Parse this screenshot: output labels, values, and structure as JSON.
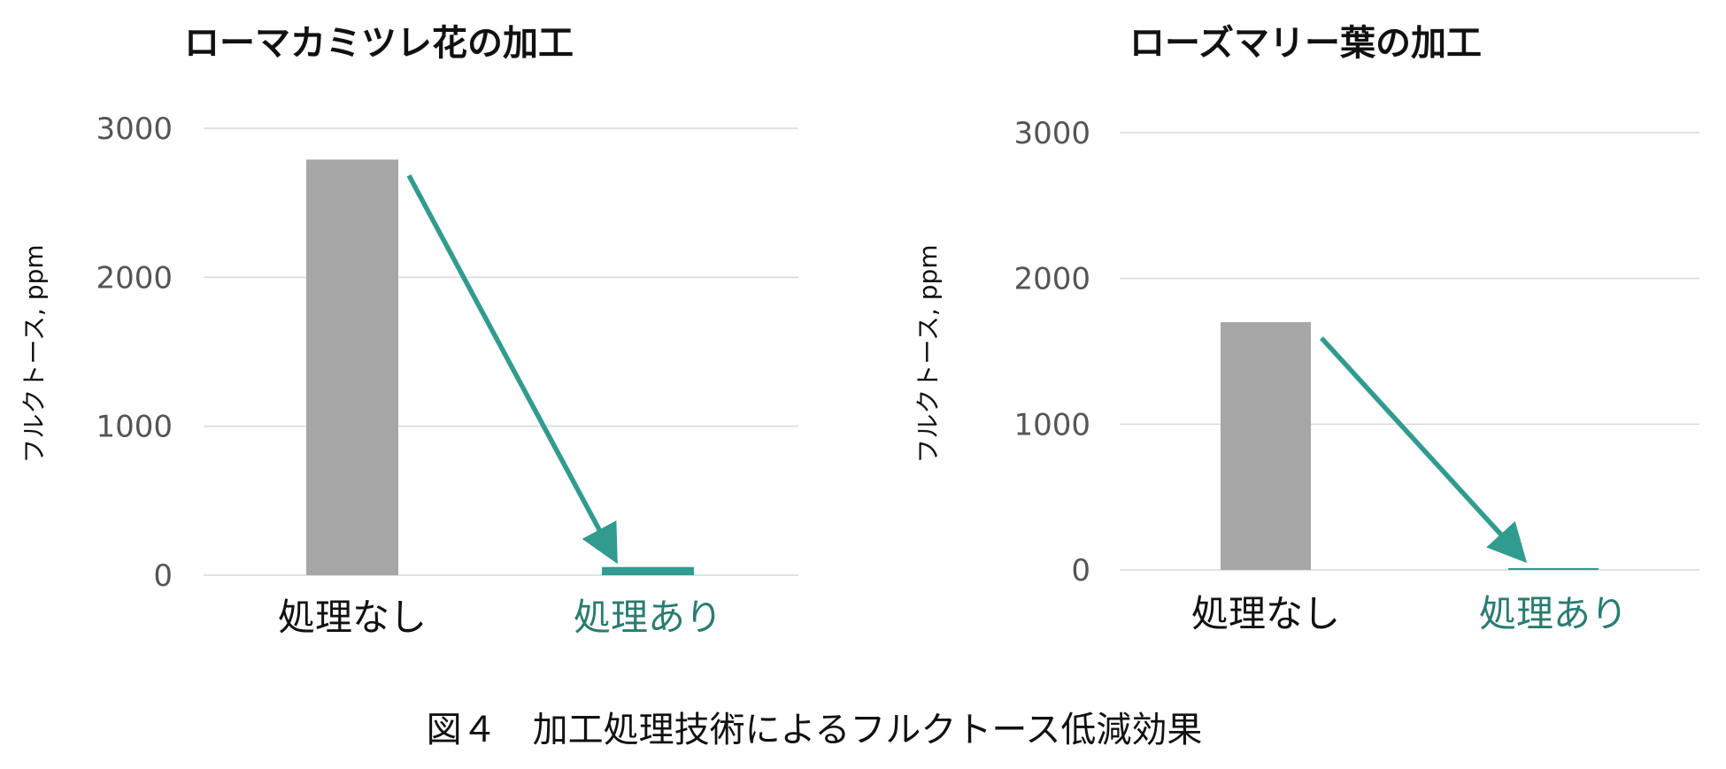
{
  "figure_caption": "図４　加工処理技術によるフルクトース低減効果",
  "colors": {
    "untreated_bar": "#a6a6a6",
    "treated_bar": "#319b8f",
    "arrow": "#319b8f",
    "treated_label": "#2a7c72",
    "untreated_label": "#111111",
    "grid": "#d9d9d9"
  },
  "chart_data": [
    {
      "type": "bar",
      "title": "ローマカミツレ花の加工",
      "ylabel": "フルクトース, ppm",
      "xlabel": "",
      "categories": [
        "処理なし",
        "処理あり"
      ],
      "values": [
        2790,
        55
      ],
      "ylim": [
        0,
        3000
      ],
      "yticks": [
        0,
        1000,
        2000,
        3000
      ],
      "grid": true,
      "annotation": "arrow-from-untreated-to-treated"
    },
    {
      "type": "bar",
      "title": "ローズマリー葉の加工",
      "ylabel": "フルクトース, ppm",
      "xlabel": "",
      "categories": [
        "処理なし",
        "処理あり"
      ],
      "values": [
        1700,
        8
      ],
      "ylim": [
        0,
        3000
      ],
      "yticks": [
        0,
        1000,
        2000,
        3000
      ],
      "grid": true,
      "annotation": "arrow-from-untreated-to-treated"
    }
  ]
}
